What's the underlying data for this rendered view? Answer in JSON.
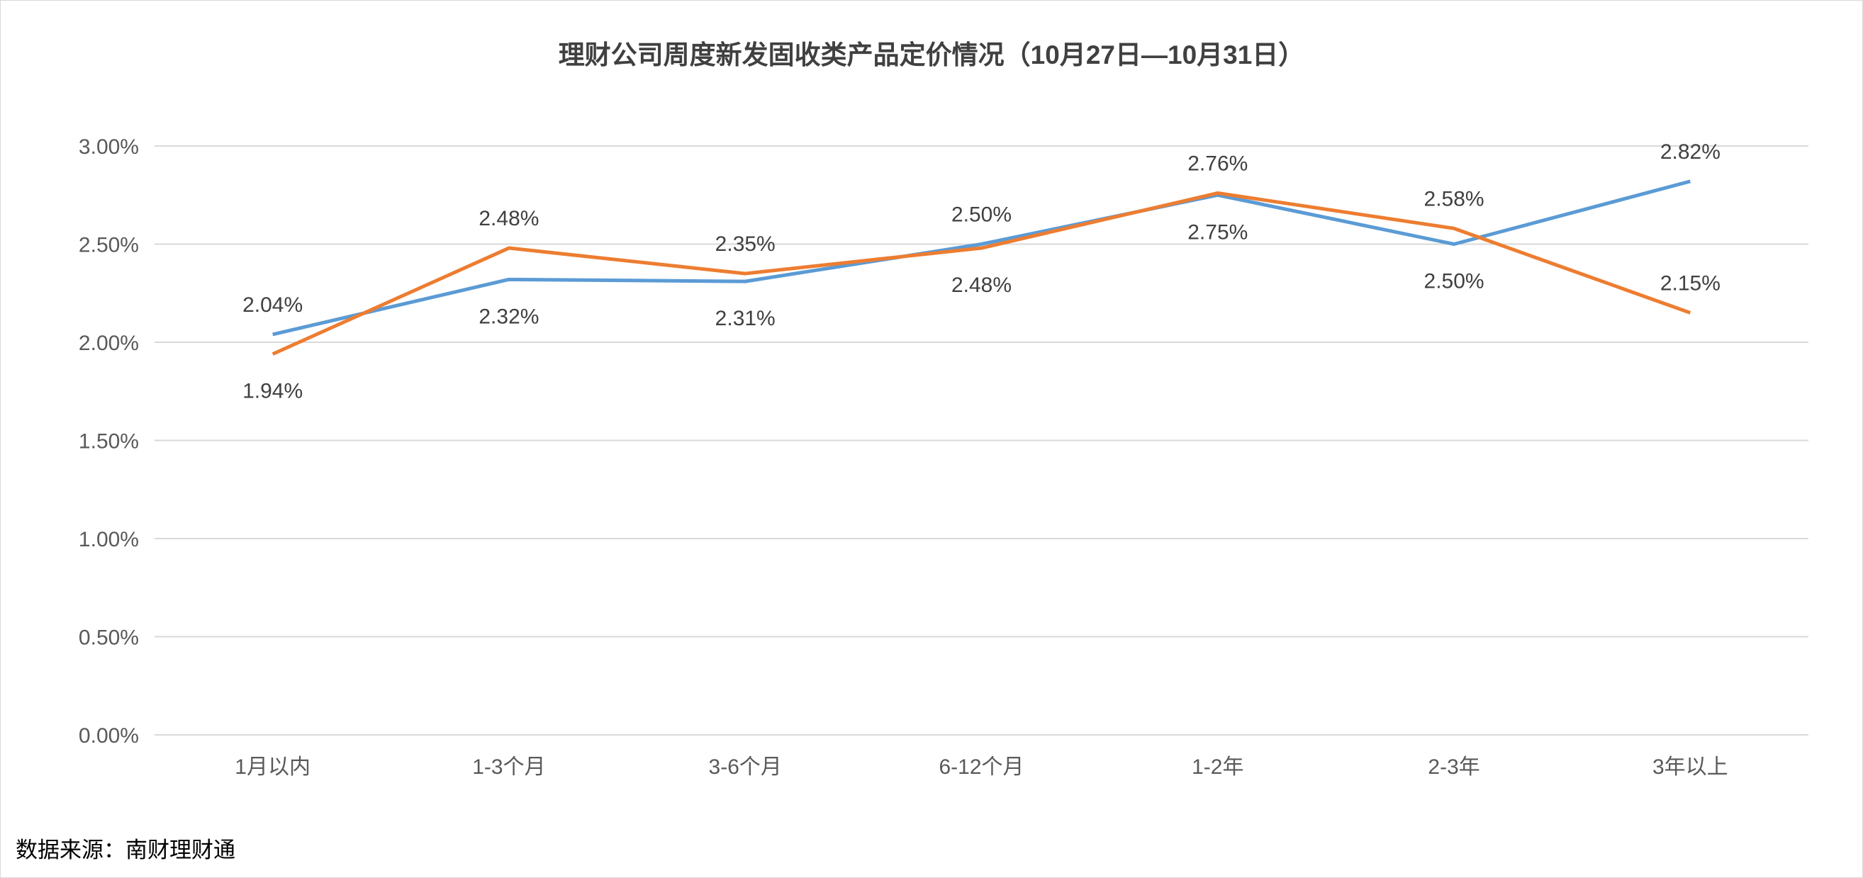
{
  "chart_data": {
    "type": "line",
    "title": "理财公司周度新发固收类产品定价情况（10月27日—10月31日）",
    "xlabel": "",
    "ylabel": "",
    "categories": [
      "1月以内",
      "1-3个月",
      "3-6个月",
      "6-12个月",
      "1-2年",
      "2-3年",
      "3年以上"
    ],
    "ylim": [
      0,
      3.0
    ],
    "yticks": [
      "0.00%",
      "0.50%",
      "1.00%",
      "1.50%",
      "2.00%",
      "2.50%",
      "3.00%"
    ],
    "grid": true,
    "legend": "none",
    "series": [
      {
        "color": "#5b9bd5",
        "values": [
          2.04,
          2.32,
          2.31,
          2.5,
          2.75,
          2.5,
          2.82
        ],
        "labels": [
          "2.04%",
          "2.32%",
          "2.31%",
          "2.50%",
          "2.75%",
          "2.50%",
          "2.82%"
        ],
        "label_position": [
          "above",
          "below",
          "below",
          "above",
          "below",
          "below",
          "above"
        ]
      },
      {
        "color": "#ed7d31",
        "values": [
          1.94,
          2.48,
          2.35,
          2.48,
          2.76,
          2.58,
          2.15
        ],
        "labels": [
          "1.94%",
          "2.48%",
          "2.35%",
          "2.48%",
          "2.76%",
          "2.58%",
          "2.15%"
        ],
        "label_position": [
          "below",
          "above",
          "above",
          "below",
          "above",
          "above",
          "above"
        ]
      }
    ]
  },
  "source": "数据来源：南财理财通"
}
